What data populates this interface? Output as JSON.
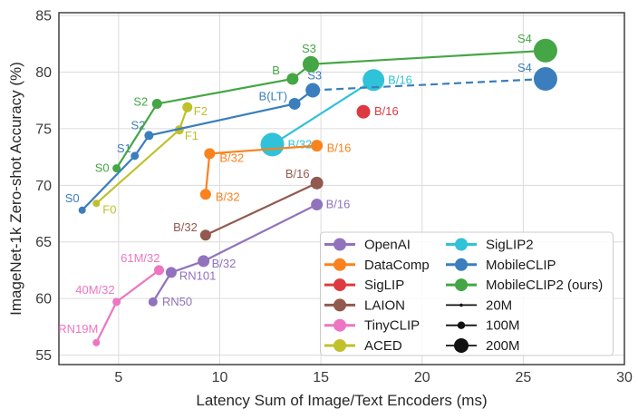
{
  "chart_data": {
    "type": "scatter",
    "title": "",
    "xlabel": "Latency Sum of Image/Text Encoders (ms)",
    "ylabel": "ImageNet-1k Zero-shot Accuracy (%)",
    "xlim": [
      2.05,
      30.0
    ],
    "ylim": [
      54.16,
      85.25
    ],
    "xticks": [
      5,
      10,
      15,
      20,
      25,
      30
    ],
    "yticks": [
      55,
      60,
      65,
      70,
      75,
      80,
      85
    ],
    "grid": true,
    "legend_position": "lower right",
    "style": {
      "grid_color": "#dcdcdc",
      "spine_color": "#333333",
      "tick_label_color": "#3b3b3b",
      "axis_title_color": "#262626",
      "legend_text_color": "#1a1a1a",
      "legend_border_color": "#cccccc",
      "size_marker_color": "#111111",
      "background": "#ffffff"
    },
    "series": [
      {
        "name": "SigLIP2",
        "color": "#30c2d8",
        "line": "solid",
        "points": [
          {
            "label": "B/32",
            "x": 12.6,
            "y": 73.6,
            "r": 13,
            "dx": 17,
            "dy": 4,
            "anchor": "start"
          },
          {
            "label": "B/16",
            "x": 17.6,
            "y": 79.3,
            "r": 12,
            "dx": 16,
            "dy": 4,
            "anchor": "start"
          }
        ]
      },
      {
        "name": "OpenAI",
        "color": "#9272bd",
        "line": "solid",
        "points": [
          {
            "label": "RN50",
            "x": 6.7,
            "y": 59.7,
            "r": 5,
            "dx": 10,
            "dy": 4,
            "anchor": "start"
          },
          {
            "label": "RN101",
            "x": 7.6,
            "y": 62.3,
            "r": 6,
            "dx": 9,
            "dy": 8,
            "anchor": "start"
          },
          {
            "label": "B/32",
            "x": 9.2,
            "y": 63.3,
            "r": 6.5,
            "dx": 9,
            "dy": 7,
            "anchor": "start"
          },
          {
            "label": "B/16",
            "x": 14.8,
            "y": 68.3,
            "r": 6.5,
            "dx": 10,
            "dy": 4,
            "anchor": "start"
          }
        ]
      },
      {
        "name": "DataComp",
        "color": "#f9821e",
        "line": "solid",
        "points": [
          {
            "label": "B/32",
            "x": 9.3,
            "y": 69.2,
            "r": 6,
            "dx": 11,
            "dy": 7,
            "anchor": "start"
          },
          {
            "label": "B/32",
            "x": 9.5,
            "y": 72.8,
            "r": 6,
            "dx": 11,
            "dy": 9,
            "anchor": "start"
          },
          {
            "label": "B/16",
            "x": 14.8,
            "y": 73.5,
            "r": 6.5,
            "dx": 11,
            "dy": 7,
            "anchor": "start"
          }
        ]
      },
      {
        "name": "SigLIP",
        "color": "#dc3a40",
        "line": "none",
        "points": [
          {
            "label": "B/16",
            "x": 17.1,
            "y": 76.5,
            "r": 7.5,
            "dx": 12,
            "dy": 4,
            "anchor": "start"
          }
        ]
      },
      {
        "name": "LAION",
        "color": "#92594e",
        "line": "solid",
        "points": [
          {
            "label": "B/32",
            "x": 9.3,
            "y": 65.6,
            "r": 6,
            "dx": -9,
            "dy": -4,
            "anchor": "end"
          },
          {
            "label": "B/16",
            "x": 14.8,
            "y": 70.2,
            "r": 7,
            "dx": -8,
            "dy": -6,
            "anchor": "end"
          }
        ]
      },
      {
        "name": "TinyCLIP",
        "color": "#ec76c2",
        "line": "solid",
        "points": [
          {
            "label": "RN19M",
            "x": 3.9,
            "y": 56.1,
            "r": 4,
            "dx": 2,
            "dy": -11,
            "anchor": "end"
          },
          {
            "label": "40M/32",
            "x": 4.9,
            "y": 59.7,
            "r": 4.5,
            "dx": -2,
            "dy": -9,
            "anchor": "end"
          },
          {
            "label": "61M/32",
            "x": 7.0,
            "y": 62.5,
            "r": 5.5,
            "dx": 1,
            "dy": -9,
            "anchor": "end"
          }
        ]
      },
      {
        "name": "ACED",
        "color": "#bfc02b",
        "line": "solid",
        "points": [
          {
            "label": "F0",
            "x": 3.9,
            "y": 68.4,
            "r": 4,
            "dx": 7,
            "dy": 11,
            "anchor": "start"
          },
          {
            "label": "F1",
            "x": 8.0,
            "y": 74.9,
            "r": 5,
            "dx": 6,
            "dy": 11,
            "anchor": "start"
          },
          {
            "label": "F2",
            "x": 8.4,
            "y": 76.9,
            "r": 5.5,
            "dx": 7,
            "dy": 9,
            "anchor": "start"
          }
        ]
      },
      {
        "name": "MobileCLIP",
        "color": "#3a7ebd",
        "line": "solid",
        "dash_from_index": 4,
        "points": [
          {
            "label": "S0",
            "x": 3.2,
            "y": 67.8,
            "r": 4,
            "dx": -3,
            "dy": -9,
            "anchor": "end"
          },
          {
            "label": "S1",
            "x": 5.8,
            "y": 72.6,
            "r": 4.5,
            "dx": -4,
            "dy": -4,
            "anchor": "end"
          },
          {
            "label": "S2",
            "x": 6.5,
            "y": 74.4,
            "r": 5,
            "dx": -4,
            "dy": -7,
            "anchor": "end"
          },
          {
            "label": "B(LT)",
            "x": 13.7,
            "y": 77.2,
            "r": 6.5,
            "dx": -8,
            "dy": -4,
            "anchor": "end"
          },
          {
            "label": "S3",
            "x": 14.6,
            "y": 78.4,
            "r": 8,
            "dx": 2,
            "dy": -12,
            "anchor": "middle"
          },
          {
            "label": "S4",
            "x": 26.1,
            "y": 79.4,
            "r": 13,
            "dx": -15,
            "dy": -8,
            "anchor": "end"
          }
        ]
      },
      {
        "name": "MobileCLIP2 (ours)",
        "color": "#44a644",
        "line": "solid",
        "points": [
          {
            "label": "S0",
            "x": 4.9,
            "y": 71.5,
            "r": 4.5,
            "dx": -8,
            "dy": 4,
            "anchor": "end"
          },
          {
            "label": "S2",
            "x": 6.9,
            "y": 77.2,
            "r": 5.5,
            "dx": -10,
            "dy": 2,
            "anchor": "end"
          },
          {
            "label": "B",
            "x": 13.6,
            "y": 79.4,
            "r": 6.5,
            "dx": -14,
            "dy": -5,
            "anchor": "end"
          },
          {
            "label": "S3",
            "x": 14.5,
            "y": 80.7,
            "r": 9,
            "dx": -2,
            "dy": -13,
            "anchor": "middle"
          },
          {
            "label": "S4",
            "x": 26.1,
            "y": 81.9,
            "r": 13,
            "dx": -15,
            "dy": -9,
            "anchor": "end"
          }
        ]
      }
    ],
    "legend": {
      "columns": [
        [
          {
            "label": "OpenAI",
            "type": "series",
            "color": "#9272bd"
          },
          {
            "label": "DataComp",
            "type": "series",
            "color": "#f9821e"
          },
          {
            "label": "SigLIP",
            "type": "series",
            "color": "#dc3a40"
          },
          {
            "label": "LAION",
            "type": "series",
            "color": "#92594e"
          },
          {
            "label": "TinyCLIP",
            "type": "series",
            "color": "#ec76c2"
          },
          {
            "label": "ACED",
            "type": "series",
            "color": "#bfc02b"
          }
        ],
        [
          {
            "label": "SigLIP2",
            "type": "series",
            "color": "#30c2d8"
          },
          {
            "label": "MobileCLIP",
            "type": "series",
            "color": "#3a7ebd"
          },
          {
            "label": "MobileCLIP2 (ours)",
            "type": "series",
            "color": "#44a644"
          },
          {
            "label": "20M",
            "type": "size",
            "r": 1.8
          },
          {
            "label": "100M",
            "type": "size",
            "r": 4.2
          },
          {
            "label": "200M",
            "type": "size",
            "r": 8
          }
        ]
      ]
    }
  }
}
